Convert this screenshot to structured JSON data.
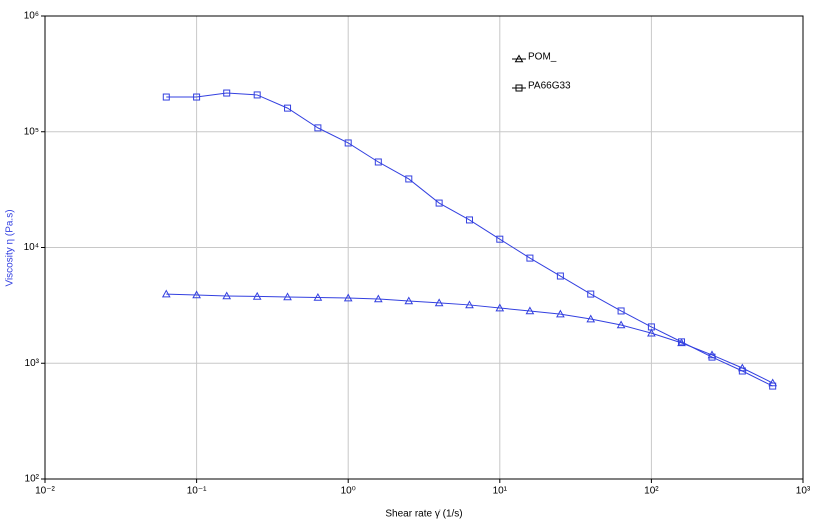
{
  "chart_data": {
    "type": "line",
    "x_label": "Shear rate γ̇  (1/s)",
    "y_label": "Viscosity η (Pa.s)",
    "x_scale": "log",
    "y_scale": "log",
    "grid": true,
    "x": [
      0.0631,
      0.1,
      0.158,
      0.251,
      0.398,
      0.631,
      1,
      1.58,
      2.51,
      3.98,
      6.31,
      10,
      15.8,
      25.1,
      39.8,
      63.1,
      100,
      158,
      251,
      398,
      631
    ],
    "series": [
      {
        "name": "POM_",
        "color": "#3340e0",
        "marker": "triangle",
        "values": [
          3960,
          3890,
          3810,
          3780,
          3740,
          3700,
          3660,
          3590,
          3450,
          3320,
          3190,
          3000,
          2830,
          2660,
          2410,
          2140,
          1820,
          1500,
          1180,
          910,
          675
        ]
      },
      {
        "name": "PA66G33",
        "color": "#3340e0",
        "marker": "square",
        "values": [
          199500,
          199500,
          216000,
          208000,
          160000,
          108000,
          80000,
          54800,
          39100,
          24200,
          17300,
          11800,
          8100,
          5670,
          3960,
          2830,
          2060,
          1530,
          1130,
          857,
          635
        ]
      }
    ],
    "xlim": [
      0.01,
      1000
    ],
    "ylim": [
      100,
      1000000
    ],
    "xticks": [
      {
        "value": 0.01,
        "label": "10⁻²"
      },
      {
        "value": 0.1,
        "label": "10⁻¹"
      },
      {
        "value": 1,
        "label": "10⁰"
      },
      {
        "value": 10,
        "label": "10¹"
      },
      {
        "value": 100,
        "label": "10²"
      },
      {
        "value": 1000,
        "label": "10³"
      }
    ],
    "yticks": [
      {
        "value": 100,
        "label": "10²"
      },
      {
        "value": 1000,
        "label": "10³"
      },
      {
        "value": 10000,
        "label": "10⁴"
      },
      {
        "value": 100000,
        "label": "10⁵"
      },
      {
        "value": 1000000,
        "label": "10⁶"
      }
    ]
  }
}
